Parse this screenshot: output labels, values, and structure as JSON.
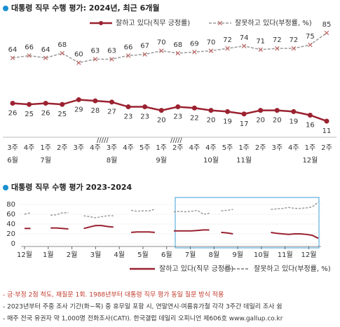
{
  "chart_data": [
    {
      "type": "line",
      "title": "대통령 직무 수행 평가: 2024년, 최근 6개월",
      "categories": [
        "3주",
        "4주",
        "1주",
        "2주",
        "3주",
        "4주",
        "3주",
        "4주",
        "5주",
        "1주",
        "2주",
        "4주",
        "4주",
        "5주",
        "1주",
        "2주",
        "3주",
        "4주",
        "1주",
        "2주"
      ],
      "months": [
        "6월",
        null,
        "7월",
        null,
        null,
        null,
        "8월",
        null,
        null,
        "9월",
        null,
        null,
        "10월",
        null,
        "11월",
        null,
        null,
        null,
        "12월",
        null
      ],
      "ylim": [
        0,
        100
      ],
      "series": [
        {
          "name": "잘하고 있다(직무 긍정률)",
          "color": "#9b2230",
          "marker": "circle",
          "style": "solid",
          "label_position": "below",
          "values": [
            26,
            25,
            26,
            25,
            29,
            28,
            27,
            23,
            23,
            20,
            23,
            22,
            20,
            19,
            17,
            20,
            20,
            19,
            16,
            11
          ]
        },
        {
          "name": "잘못하고 있다(부정률, %)",
          "color": "#999999",
          "marker": "x",
          "style": "dashed",
          "label_position": "above",
          "values": [
            64,
            66,
            64,
            68,
            60,
            63,
            63,
            66,
            67,
            70,
            68,
            69,
            70,
            72,
            74,
            71,
            72,
            72,
            75,
            85
          ]
        }
      ]
    },
    {
      "type": "line",
      "title": "대통령 직무 수행 평가 2023-2024",
      "x": [
        0,
        0.25,
        0.5,
        1.1,
        1.35,
        1.6,
        1.85,
        2.2,
        2.5,
        2.75,
        3,
        3.25,
        3.5,
        3.75,
        4.1,
        4.5,
        4.75,
        5,
        5.25,
        5.5,
        5.8,
        6.3,
        6.55,
        6.8,
        7.05,
        7.3,
        7.55,
        7.8,
        8.05,
        8.3,
        8.55,
        8.8,
        9.1,
        10.4,
        10.65,
        10.9,
        11.15,
        11.4,
        11.65,
        11.9,
        12.15,
        12.4
      ],
      "xlim": [
        0,
        12.4
      ],
      "xticks": [
        {
          "value": 0,
          "label": "12월"
        },
        {
          "value": 1,
          "label": "1월"
        },
        {
          "value": 2,
          "label": "2월"
        },
        {
          "value": 3,
          "label": "3월"
        },
        {
          "value": 4,
          "label": "4월"
        },
        {
          "value": 5,
          "label": "5월"
        },
        {
          "value": 6,
          "label": "6월"
        },
        {
          "value": 7,
          "label": "7월"
        },
        {
          "value": 8,
          "label": "8월"
        },
        {
          "value": 9,
          "label": "9월"
        },
        {
          "value": 10,
          "label": "10월"
        },
        {
          "value": 11,
          "label": "11월"
        },
        {
          "value": 12,
          "label": "12월"
        }
      ],
      "ylim": [
        0,
        80
      ],
      "yticks": [
        0,
        20,
        40,
        60,
        80
      ],
      "grid": true,
      "series": [
        {
          "name": "잘하고 있다(직무 긍정률)",
          "color": "#9b2230",
          "style": "solid",
          "values": [
            31,
            31,
            null,
            32,
            32,
            31,
            30,
            null,
            31,
            34,
            37,
            37,
            35,
            34,
            null,
            23,
            24,
            24,
            24,
            23,
            null,
            26,
            26,
            26,
            26,
            27,
            28,
            28,
            null,
            23,
            22,
            20,
            null,
            23,
            21,
            20,
            19,
            20,
            20,
            19,
            17,
            11
          ]
        },
        {
          "name": "잘못하고 있다(부정률, %)",
          "color": "#999999",
          "style": "dashed",
          "values": [
            60,
            63,
            null,
            58,
            59,
            63,
            63,
            null,
            57,
            55,
            53,
            55,
            57,
            57,
            null,
            68,
            66,
            67,
            67,
            70,
            null,
            65,
            66,
            65,
            66,
            68,
            60,
            62,
            null,
            67,
            68,
            70,
            null,
            70,
            71,
            72,
            74,
            72,
            72,
            73,
            75,
            85
          ]
        }
      ]
    }
  ],
  "notes": [
    "- 긍·부정 2점 척도, 재질문 1회. 1988년부터 대통령 직무 평가 동일 질문 방식 적용",
    "- 2023년부터 주중 조사 기간(화~목) 중 휴무일 포함 시, 연말연시·여름휴가철 각각 3주간 데일리 조사 쉼",
    "- 매주 전국 유권자 약 1,000명 전화조사(CATI). 한국갤럽 데일리 오피니언 제606호 www.gallup.co.kr"
  ]
}
